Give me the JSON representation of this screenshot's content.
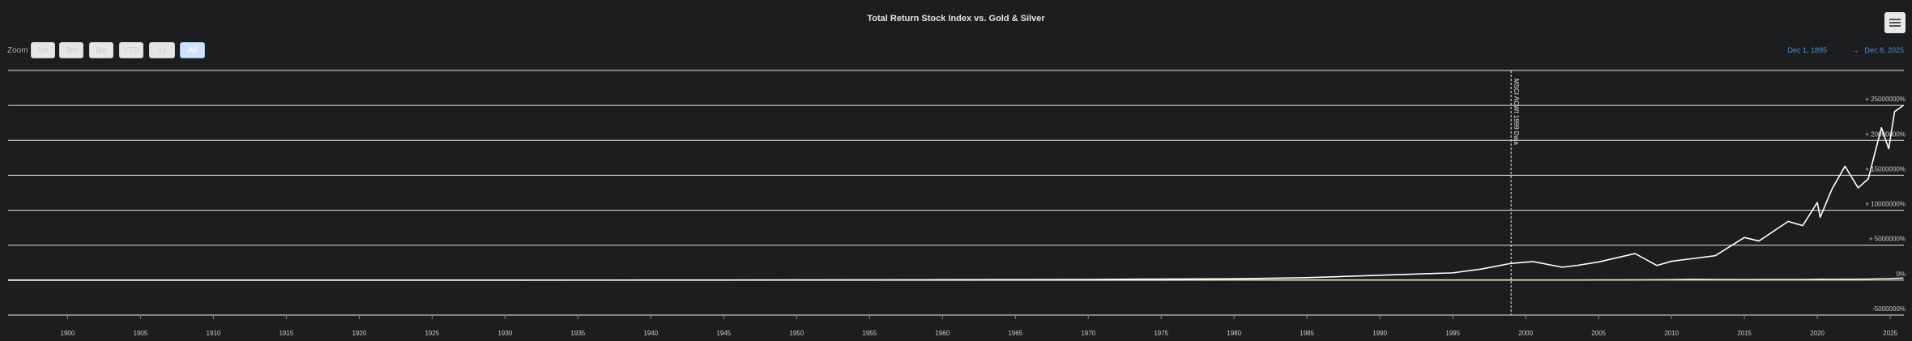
{
  "chart_data": {
    "type": "line",
    "title": "Total Return Stock Index vs. Gold & Silver",
    "range_selector": {
      "label": "Zoom",
      "buttons": [
        "1m",
        "3m",
        "6m",
        "YTD",
        "1y",
        "All"
      ],
      "selected": 5
    },
    "date_range": {
      "from": "Dec 1, 1895",
      "separator": "→",
      "to": "Dec 8, 2025"
    },
    "x": [
      1895.92,
      1910,
      1920,
      1930,
      1940,
      1950,
      1960,
      1970,
      1975,
      1980,
      1985,
      1990,
      1995,
      1997,
      1999,
      2000.5,
      2002.5,
      2003.5,
      2005,
      2007.5,
      2009,
      2010,
      2011.5,
      2013,
      2015,
      2016,
      2018,
      2019,
      2020,
      2020.2,
      2021,
      2021.9,
      2022.8,
      2023.5,
      2024,
      2024.4,
      2024.9,
      2025.3,
      2025.9
    ],
    "series": [
      {
        "color": "#f0e6c8",
        "values": [
          0,
          0,
          0,
          0,
          1000,
          1500,
          1500,
          3000,
          10000,
          30000,
          25000,
          20000,
          18000,
          17000,
          16000,
          16000,
          18000,
          20000,
          30000,
          50000,
          60000,
          80000,
          120000,
          100000,
          80000,
          90000,
          90000,
          100000,
          130000,
          140000,
          130000,
          140000,
          140000,
          150000,
          180000,
          200000,
          210000,
          250000,
          300000
        ]
      },
      {
        "color": "#ffffff",
        "values": [
          0,
          2000,
          5000,
          10000,
          15000,
          30000,
          60000,
          100000,
          150000,
          200000,
          350000,
          700000,
          1040000,
          1600000,
          2400000,
          2660000,
          1850000,
          2100000,
          2600000,
          3800000,
          2100000,
          2700000,
          3100000,
          3500000,
          6100000,
          5600000,
          8400000,
          7800000,
          11100000,
          9000000,
          13000000,
          16300000,
          13200000,
          14500000,
          18600000,
          21800000,
          18800000,
          24100000,
          25000000
        ]
      }
    ],
    "xlim": [
      1895.92,
      2025.94
    ],
    "xticks": [
      1900,
      1905,
      1910,
      1915,
      1920,
      1925,
      1930,
      1935,
      1940,
      1945,
      1950,
      1955,
      1960,
      1965,
      1970,
      1975,
      1980,
      1985,
      1990,
      1995,
      2000,
      2005,
      2010,
      2015,
      2020,
      2025
    ],
    "ylim": [
      -5000000,
      30000000
    ],
    "yticks": [
      {
        "value": -5000000,
        "label": "-5000000%"
      },
      {
        "value": 0,
        "label": "0%"
      },
      {
        "value": 5000000,
        "label": "+ 5000000%"
      },
      {
        "value": 10000000,
        "label": "+ 10000000%"
      },
      {
        "value": 15000000,
        "label": "+ 15000000%"
      },
      {
        "value": 20000000,
        "label": "+ 20000000%"
      },
      {
        "value": 25000000,
        "label": "+ 25000000%"
      }
    ],
    "grid": true,
    "annotations": [
      {
        "x": 1999,
        "label": "MSCI ACWI 1999 Data"
      }
    ]
  }
}
